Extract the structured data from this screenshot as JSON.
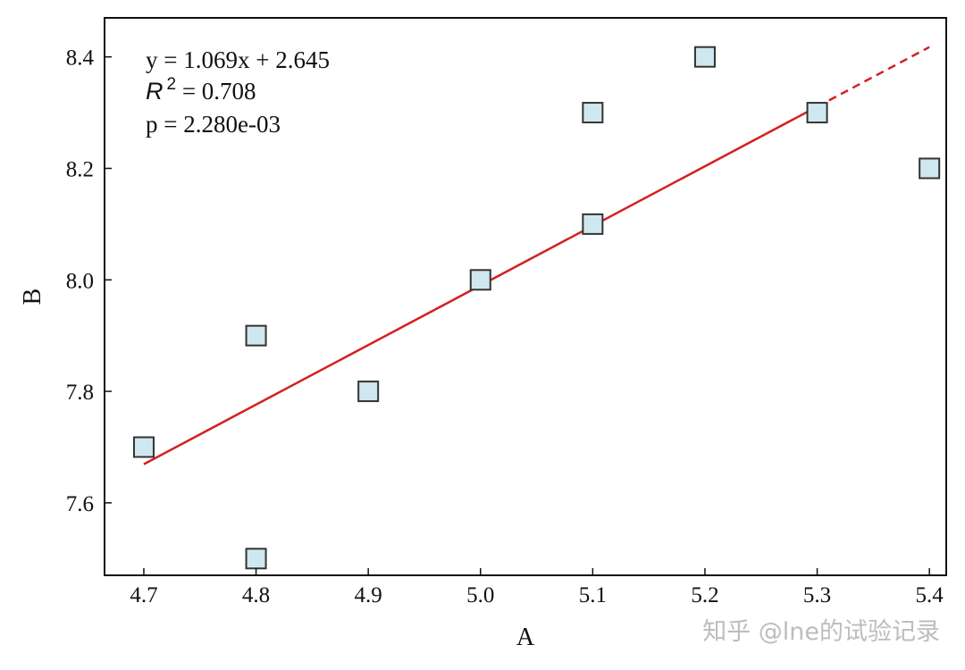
{
  "chart_data": {
    "type": "scatter",
    "xlabel": "A",
    "ylabel": "B",
    "xlim": [
      4.665,
      5.415
    ],
    "ylim": [
      7.47,
      8.47
    ],
    "xticks": [
      "4.7",
      "4.8",
      "4.9",
      "5.0",
      "5.1",
      "5.2",
      "5.3",
      "5.4"
    ],
    "yticks": [
      "7.6",
      "7.8",
      "8.0",
      "8.2",
      "8.4"
    ],
    "points": [
      {
        "x": 4.7,
        "y": 7.7
      },
      {
        "x": 4.8,
        "y": 7.9
      },
      {
        "x": 4.8,
        "y": 7.5
      },
      {
        "x": 4.9,
        "y": 7.8
      },
      {
        "x": 5.0,
        "y": 8.0
      },
      {
        "x": 5.1,
        "y": 8.3
      },
      {
        "x": 5.1,
        "y": 8.1
      },
      {
        "x": 5.2,
        "y": 8.4
      },
      {
        "x": 5.3,
        "y": 8.3
      },
      {
        "x": 5.4,
        "y": 8.2
      }
    ],
    "marker": "square",
    "marker_color": "#cfe8ef",
    "fit": {
      "slope": 1.069,
      "intercept": 2.645,
      "solid_range": [
        4.7,
        5.3
      ],
      "dashed_range": [
        5.3,
        5.4
      ],
      "color": "#d42020"
    },
    "annotations": {
      "equation": "y = 1.069x + 2.645",
      "r2_symbol": "R",
      "r2_exponent": "2",
      "r2_value": " = 0.708",
      "p_value": "p = 2.280e-03"
    },
    "grid": false
  },
  "watermark": "知乎 @lne的试验记录"
}
